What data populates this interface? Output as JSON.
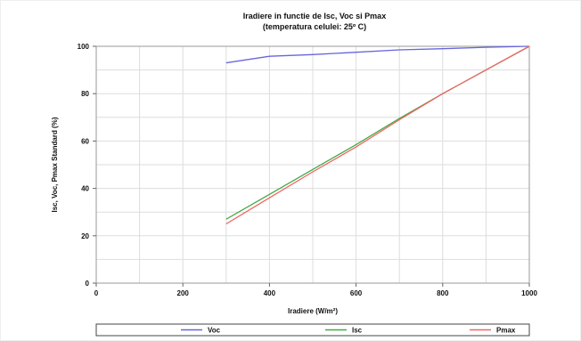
{
  "chart_data": {
    "type": "line",
    "title": "Iradiere in functie de Isc, Voc si Pmax",
    "subtitle": "(temperatura celulei: 25º C)",
    "xlabel": "Iradiere (W/m²)",
    "ylabel": "Isc, Voc, Pmax Standard (%)",
    "xlim": [
      0,
      1000
    ],
    "ylim": [
      0,
      100
    ],
    "x_ticks": [
      "0",
      "200",
      "400",
      "600",
      "800",
      "1000"
    ],
    "y_ticks": [
      "0",
      "20",
      "40",
      "60",
      "80",
      "100"
    ],
    "grid": true,
    "legend_position": "bottom",
    "series": [
      {
        "name": "Voc",
        "color": "#6666dd",
        "x": [
          300,
          400,
          500,
          600,
          700,
          800,
          900,
          1000
        ],
        "y": [
          93,
          95.8,
          96.5,
          97.5,
          98.5,
          99,
          99.6,
          100
        ]
      },
      {
        "name": "Isc",
        "color": "#44aa44",
        "x": [
          300,
          400,
          500,
          600,
          700,
          800,
          900,
          1000
        ],
        "y": [
          27,
          37.5,
          48,
          58.5,
          69.5,
          80,
          90,
          100
        ]
      },
      {
        "name": "Pmax",
        "color": "#ee6666",
        "x": [
          300,
          400,
          500,
          600,
          700,
          800,
          900,
          1000
        ],
        "y": [
          25,
          36,
          47,
          57.5,
          69,
          80,
          90,
          100
        ]
      }
    ]
  }
}
